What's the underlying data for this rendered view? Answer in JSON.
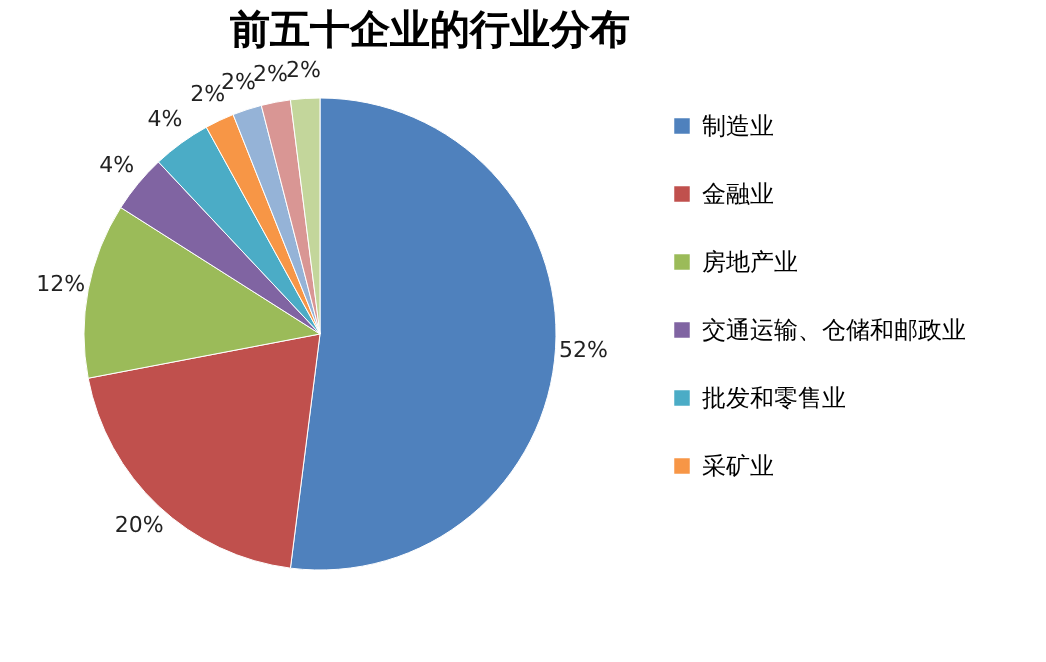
{
  "chart_data": {
    "type": "pie",
    "title": "前五十企业的行业分布",
    "categories": [
      "制造业",
      "金融业",
      "房地产业",
      "交通运输、仓储和邮政业",
      "批发和零售业",
      "采矿业",
      null,
      null,
      null
    ],
    "values": [
      52,
      20,
      12,
      4,
      4,
      2,
      2,
      2,
      2
    ],
    "value_labels": [
      "52%",
      "20%",
      "12%",
      "4%",
      "4%",
      "2%",
      "2%",
      "2%",
      "2%"
    ],
    "colors": [
      "#4f81bd",
      "#c0504d",
      "#9bbb59",
      "#8064a2",
      "#4bacc6",
      "#f79646",
      "#95b3d7",
      "#d99694",
      "#c3d69b"
    ],
    "legend": "right"
  }
}
